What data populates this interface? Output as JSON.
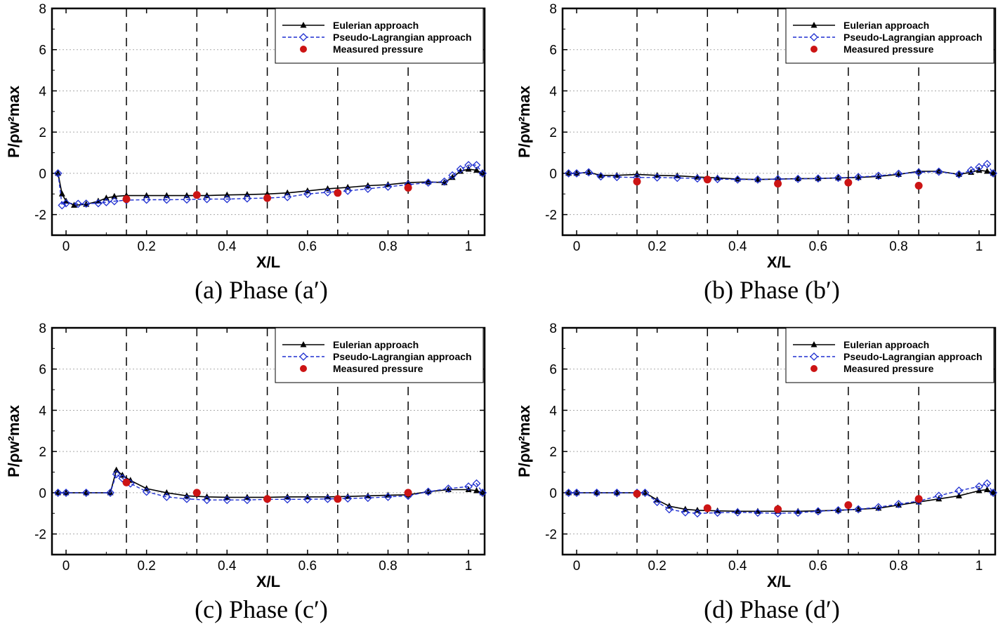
{
  "figure": {
    "legend": {
      "eulerian": "Eulerian approach",
      "lagrangian": "Pseudo-Lagrangian approach",
      "measured": "Measured pressure"
    },
    "colors": {
      "eulerian": "#000000",
      "lagrangian": "#1f2fd0",
      "measured": "#cc1414",
      "grid": "#aaaaaa"
    }
  },
  "chart_data": [
    {
      "type": "line",
      "caption": "(a) Phase (a′)",
      "xlabel": "X/L",
      "ylabel": "P/ρw²max",
      "xlim": [
        -0.035,
        1.04
      ],
      "ylim": [
        -3,
        8
      ],
      "xticks": [
        "0",
        "0.2",
        "0.4",
        "0.6",
        "0.8",
        "1"
      ],
      "yticks": [
        "-2",
        "0",
        "2",
        "4",
        "6",
        "8"
      ],
      "vlines": [
        0.15,
        0.325,
        0.5,
        0.675,
        0.85
      ],
      "series": [
        {
          "name": "Eulerian approach",
          "points": [
            [
              -0.02,
              0
            ],
            [
              -0.01,
              -1.0
            ],
            [
              0.0,
              -1.35
            ],
            [
              0.02,
              -1.55
            ],
            [
              0.05,
              -1.5
            ],
            [
              0.08,
              -1.35
            ],
            [
              0.1,
              -1.2
            ],
            [
              0.12,
              -1.12
            ],
            [
              0.15,
              -1.08
            ],
            [
              0.2,
              -1.08
            ],
            [
              0.25,
              -1.08
            ],
            [
              0.3,
              -1.08
            ],
            [
              0.35,
              -1.08
            ],
            [
              0.4,
              -1.05
            ],
            [
              0.45,
              -1.03
            ],
            [
              0.5,
              -1.0
            ],
            [
              0.55,
              -0.95
            ],
            [
              0.6,
              -0.85
            ],
            [
              0.65,
              -0.75
            ],
            [
              0.7,
              -0.68
            ],
            [
              0.75,
              -0.6
            ],
            [
              0.8,
              -0.55
            ],
            [
              0.85,
              -0.45
            ],
            [
              0.9,
              -0.42
            ],
            [
              0.94,
              -0.45
            ],
            [
              0.96,
              -0.2
            ],
            [
              0.98,
              0.1
            ],
            [
              1.0,
              0.2
            ],
            [
              1.02,
              0.15
            ],
            [
              1.035,
              0
            ]
          ]
        },
        {
          "name": "Pseudo-Lagrangian approach",
          "points": [
            [
              -0.02,
              0
            ],
            [
              -0.01,
              -1.55
            ],
            [
              0.0,
              -1.45
            ],
            [
              0.03,
              -1.48
            ],
            [
              0.05,
              -1.47
            ],
            [
              0.08,
              -1.45
            ],
            [
              0.1,
              -1.4
            ],
            [
              0.12,
              -1.35
            ],
            [
              0.15,
              -1.3
            ],
            [
              0.2,
              -1.28
            ],
            [
              0.25,
              -1.28
            ],
            [
              0.3,
              -1.27
            ],
            [
              0.35,
              -1.25
            ],
            [
              0.4,
              -1.25
            ],
            [
              0.45,
              -1.22
            ],
            [
              0.5,
              -1.2
            ],
            [
              0.55,
              -1.15
            ],
            [
              0.6,
              -1.0
            ],
            [
              0.65,
              -0.92
            ],
            [
              0.7,
              -0.85
            ],
            [
              0.75,
              -0.75
            ],
            [
              0.8,
              -0.65
            ],
            [
              0.85,
              -0.55
            ],
            [
              0.9,
              -0.45
            ],
            [
              0.94,
              -0.4
            ],
            [
              0.96,
              -0.1
            ],
            [
              0.98,
              0.2
            ],
            [
              1.0,
              0.4
            ],
            [
              1.02,
              0.4
            ],
            [
              1.035,
              0
            ]
          ]
        },
        {
          "name": "Measured pressure",
          "points": [
            [
              0.15,
              -1.25
            ],
            [
              0.325,
              -1.05
            ],
            [
              0.5,
              -1.2
            ],
            [
              0.675,
              -0.95
            ],
            [
              0.85,
              -0.7
            ]
          ]
        }
      ]
    },
    {
      "type": "line",
      "caption": "(b) Phase (b′)",
      "xlabel": "X/L",
      "ylabel": "P/ρw²max",
      "xlim": [
        -0.035,
        1.04
      ],
      "ylim": [
        -3,
        8
      ],
      "xticks": [
        "0",
        "0.2",
        "0.4",
        "0.6",
        "0.8",
        "1"
      ],
      "yticks": [
        "-2",
        "0",
        "2",
        "4",
        "6",
        "8"
      ],
      "vlines": [
        0.15,
        0.325,
        0.5,
        0.675,
        0.85
      ],
      "series": [
        {
          "name": "Eulerian approach",
          "points": [
            [
              -0.02,
              0
            ],
            [
              0.0,
              0
            ],
            [
              0.03,
              0.05
            ],
            [
              0.06,
              -0.1
            ],
            [
              0.1,
              -0.1
            ],
            [
              0.15,
              -0.05
            ],
            [
              0.2,
              -0.1
            ],
            [
              0.25,
              -0.12
            ],
            [
              0.3,
              -0.18
            ],
            [
              0.35,
              -0.22
            ],
            [
              0.4,
              -0.28
            ],
            [
              0.45,
              -0.3
            ],
            [
              0.5,
              -0.28
            ],
            [
              0.55,
              -0.26
            ],
            [
              0.6,
              -0.25
            ],
            [
              0.65,
              -0.22
            ],
            [
              0.7,
              -0.2
            ],
            [
              0.75,
              -0.15
            ],
            [
              0.8,
              -0.05
            ],
            [
              0.85,
              0.1
            ],
            [
              0.9,
              0.1
            ],
            [
              0.95,
              -0.05
            ],
            [
              0.98,
              0.05
            ],
            [
              1.0,
              0.15
            ],
            [
              1.02,
              0.1
            ],
            [
              1.035,
              0
            ]
          ]
        },
        {
          "name": "Pseudo-Lagrangian approach",
          "points": [
            [
              -0.02,
              0
            ],
            [
              0.0,
              0
            ],
            [
              0.03,
              0.05
            ],
            [
              0.06,
              -0.15
            ],
            [
              0.1,
              -0.18
            ],
            [
              0.15,
              -0.2
            ],
            [
              0.2,
              -0.2
            ],
            [
              0.25,
              -0.22
            ],
            [
              0.3,
              -0.25
            ],
            [
              0.35,
              -0.28
            ],
            [
              0.4,
              -0.3
            ],
            [
              0.45,
              -0.3
            ],
            [
              0.5,
              -0.28
            ],
            [
              0.55,
              -0.27
            ],
            [
              0.6,
              -0.25
            ],
            [
              0.65,
              -0.22
            ],
            [
              0.7,
              -0.18
            ],
            [
              0.75,
              -0.12
            ],
            [
              0.8,
              -0.02
            ],
            [
              0.85,
              0.05
            ],
            [
              0.9,
              0.08
            ],
            [
              0.95,
              -0.05
            ],
            [
              0.98,
              0.15
            ],
            [
              1.0,
              0.3
            ],
            [
              1.02,
              0.45
            ],
            [
              1.035,
              0
            ]
          ]
        },
        {
          "name": "Measured pressure",
          "points": [
            [
              0.15,
              -0.4
            ],
            [
              0.325,
              -0.3
            ],
            [
              0.5,
              -0.5
            ],
            [
              0.675,
              -0.45
            ],
            [
              0.85,
              -0.6
            ]
          ]
        }
      ]
    },
    {
      "type": "line",
      "caption": "(c) Phase (c′)",
      "xlabel": "X/L",
      "ylabel": "P/ρw²max",
      "xlim": [
        -0.035,
        1.04
      ],
      "ylim": [
        -3,
        8
      ],
      "xticks": [
        "0",
        "0.2",
        "0.4",
        "0.6",
        "0.8",
        "1"
      ],
      "yticks": [
        "-2",
        "0",
        "2",
        "4",
        "6",
        "8"
      ],
      "vlines": [
        0.15,
        0.325,
        0.5,
        0.675,
        0.85
      ],
      "series": [
        {
          "name": "Eulerian approach",
          "points": [
            [
              -0.02,
              0
            ],
            [
              0.0,
              0
            ],
            [
              0.05,
              0
            ],
            [
              0.11,
              0
            ],
            [
              0.125,
              1.1
            ],
            [
              0.14,
              0.85
            ],
            [
              0.16,
              0.6
            ],
            [
              0.2,
              0.2
            ],
            [
              0.25,
              0
            ],
            [
              0.3,
              -0.15
            ],
            [
              0.35,
              -0.2
            ],
            [
              0.4,
              -0.22
            ],
            [
              0.45,
              -0.22
            ],
            [
              0.5,
              -0.22
            ],
            [
              0.55,
              -0.2
            ],
            [
              0.6,
              -0.2
            ],
            [
              0.65,
              -0.2
            ],
            [
              0.7,
              -0.18
            ],
            [
              0.75,
              -0.15
            ],
            [
              0.8,
              -0.12
            ],
            [
              0.85,
              -0.1
            ],
            [
              0.9,
              0.05
            ],
            [
              0.95,
              0.15
            ],
            [
              1.0,
              0.15
            ],
            [
              1.02,
              0.1
            ],
            [
              1.035,
              0
            ]
          ]
        },
        {
          "name": "Pseudo-Lagrangian approach",
          "points": [
            [
              -0.02,
              0
            ],
            [
              0.0,
              0
            ],
            [
              0.05,
              0
            ],
            [
              0.11,
              0
            ],
            [
              0.125,
              0.9
            ],
            [
              0.14,
              0.7
            ],
            [
              0.16,
              0.45
            ],
            [
              0.2,
              0.05
            ],
            [
              0.25,
              -0.2
            ],
            [
              0.3,
              -0.3
            ],
            [
              0.35,
              -0.35
            ],
            [
              0.4,
              -0.35
            ],
            [
              0.45,
              -0.35
            ],
            [
              0.5,
              -0.32
            ],
            [
              0.55,
              -0.32
            ],
            [
              0.6,
              -0.32
            ],
            [
              0.65,
              -0.3
            ],
            [
              0.7,
              -0.28
            ],
            [
              0.75,
              -0.25
            ],
            [
              0.8,
              -0.2
            ],
            [
              0.85,
              -0.15
            ],
            [
              0.9,
              0.05
            ],
            [
              0.95,
              0.2
            ],
            [
              1.0,
              0.3
            ],
            [
              1.02,
              0.45
            ],
            [
              1.035,
              0
            ]
          ]
        },
        {
          "name": "Measured pressure",
          "points": [
            [
              0.15,
              0.5
            ],
            [
              0.325,
              0.0
            ],
            [
              0.5,
              -0.3
            ],
            [
              0.675,
              -0.3
            ],
            [
              0.85,
              0.0
            ]
          ]
        }
      ]
    },
    {
      "type": "line",
      "caption": "(d) Phase (d′)",
      "xlabel": "X/L",
      "ylabel": "P/ρw²max",
      "xlim": [
        -0.035,
        1.04
      ],
      "ylim": [
        -3,
        8
      ],
      "xticks": [
        "0",
        "0.2",
        "0.4",
        "0.6",
        "0.8",
        "1"
      ],
      "yticks": [
        "-2",
        "0",
        "2",
        "4",
        "6",
        "8"
      ],
      "vlines": [
        0.15,
        0.325,
        0.5,
        0.675,
        0.85
      ],
      "series": [
        {
          "name": "Eulerian approach",
          "points": [
            [
              -0.02,
              0
            ],
            [
              0.0,
              0
            ],
            [
              0.05,
              0
            ],
            [
              0.1,
              0
            ],
            [
              0.15,
              0
            ],
            [
              0.17,
              0
            ],
            [
              0.2,
              -0.35
            ],
            [
              0.23,
              -0.65
            ],
            [
              0.27,
              -0.8
            ],
            [
              0.3,
              -0.85
            ],
            [
              0.35,
              -0.88
            ],
            [
              0.4,
              -0.9
            ],
            [
              0.45,
              -0.9
            ],
            [
              0.5,
              -0.9
            ],
            [
              0.55,
              -0.9
            ],
            [
              0.6,
              -0.88
            ],
            [
              0.65,
              -0.85
            ],
            [
              0.7,
              -0.8
            ],
            [
              0.75,
              -0.75
            ],
            [
              0.8,
              -0.6
            ],
            [
              0.85,
              -0.45
            ],
            [
              0.9,
              -0.3
            ],
            [
              0.95,
              -0.15
            ],
            [
              1.0,
              0.1
            ],
            [
              1.02,
              0.15
            ],
            [
              1.035,
              0
            ]
          ]
        },
        {
          "name": "Pseudo-Lagrangian approach",
          "points": [
            [
              -0.02,
              0
            ],
            [
              0.0,
              0
            ],
            [
              0.05,
              0
            ],
            [
              0.1,
              0
            ],
            [
              0.15,
              0
            ],
            [
              0.17,
              0
            ],
            [
              0.2,
              -0.45
            ],
            [
              0.23,
              -0.8
            ],
            [
              0.27,
              -0.95
            ],
            [
              0.3,
              -1.0
            ],
            [
              0.35,
              -0.97
            ],
            [
              0.4,
              -0.95
            ],
            [
              0.45,
              -0.97
            ],
            [
              0.5,
              -1.0
            ],
            [
              0.55,
              -0.97
            ],
            [
              0.6,
              -0.9
            ],
            [
              0.65,
              -0.85
            ],
            [
              0.7,
              -0.8
            ],
            [
              0.75,
              -0.7
            ],
            [
              0.8,
              -0.55
            ],
            [
              0.85,
              -0.4
            ],
            [
              0.9,
              -0.15
            ],
            [
              0.95,
              0.1
            ],
            [
              1.0,
              0.3
            ],
            [
              1.02,
              0.45
            ],
            [
              1.035,
              0
            ]
          ]
        },
        {
          "name": "Measured pressure",
          "points": [
            [
              0.15,
              -0.05
            ],
            [
              0.325,
              -0.75
            ],
            [
              0.5,
              -0.8
            ],
            [
              0.675,
              -0.6
            ],
            [
              0.85,
              -0.3
            ]
          ]
        }
      ]
    }
  ]
}
